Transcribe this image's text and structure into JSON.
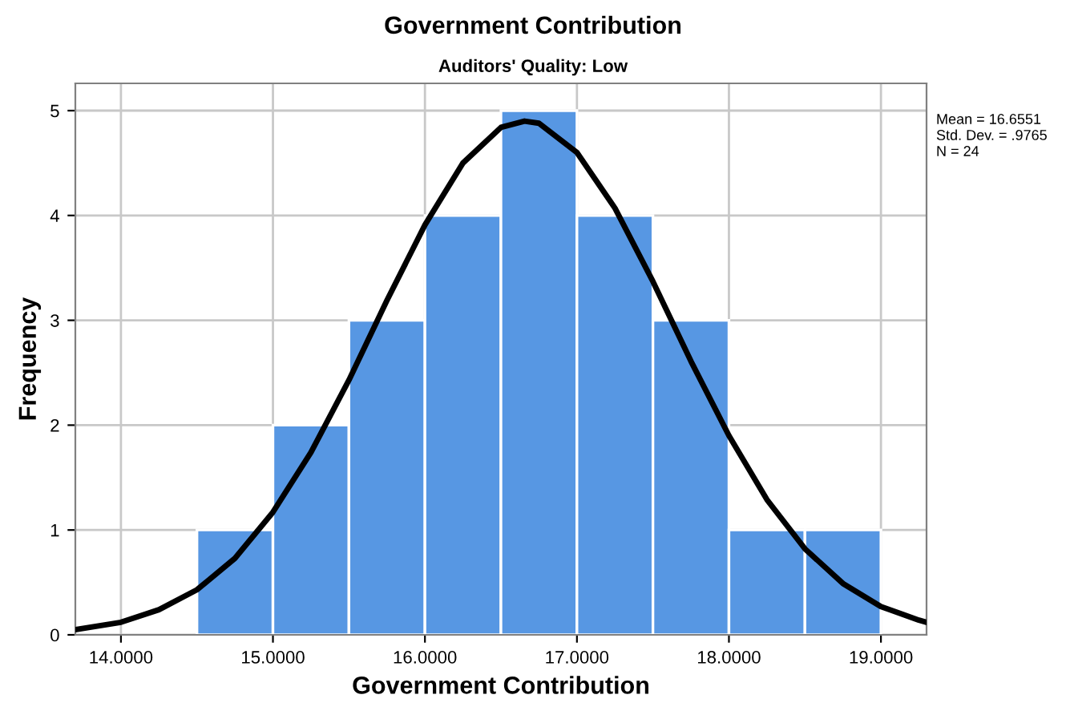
{
  "chart_data": {
    "type": "histogram",
    "title": "Government Contribution",
    "subtitle": "Auditors' Quality: Low",
    "xlabel": "Government Contribution",
    "ylabel": "Frequency",
    "bins": [
      14.5,
      15.0,
      15.5,
      16.0,
      16.5,
      17.0,
      17.5,
      18.0,
      18.5,
      19.0
    ],
    "values": [
      1,
      2,
      3,
      4,
      5,
      4,
      3,
      1,
      1
    ],
    "color": "#5797e3",
    "series": [
      {
        "type": "line",
        "color": "#000000",
        "x": [
          13.7,
          14.0,
          14.25,
          14.5,
          14.75,
          15.0,
          15.25,
          15.5,
          15.75,
          16.0,
          16.25,
          16.5,
          16.655,
          16.75,
          17.0,
          17.25,
          17.5,
          17.75,
          18.0,
          18.25,
          18.5,
          18.75,
          19.0,
          19.25,
          19.3
        ],
        "values": [
          0.05,
          0.12,
          0.24,
          0.43,
          0.73,
          1.17,
          1.74,
          2.43,
          3.19,
          3.91,
          4.5,
          4.84,
          4.9,
          4.88,
          4.6,
          4.07,
          3.37,
          2.61,
          1.9,
          1.29,
          0.82,
          0.49,
          0.27,
          0.14,
          0.12
        ]
      }
    ],
    "xlim": [
      13.7,
      19.3
    ],
    "ylim": [
      0,
      5.26
    ],
    "xticks": [
      {
        "value": 14,
        "label": "14.0000"
      },
      {
        "value": 15,
        "label": "15.0000"
      },
      {
        "value": 16,
        "label": "16.0000"
      },
      {
        "value": 17,
        "label": "17.0000"
      },
      {
        "value": 18,
        "label": "18.0000"
      },
      {
        "value": 19,
        "label": "19.0000"
      }
    ],
    "yticks": [
      0,
      1,
      2,
      3,
      4,
      5
    ],
    "grid": true,
    "annotations": [
      "Mean = 16.6551",
      "Std. Dev. = .9765",
      "N = 24"
    ]
  }
}
